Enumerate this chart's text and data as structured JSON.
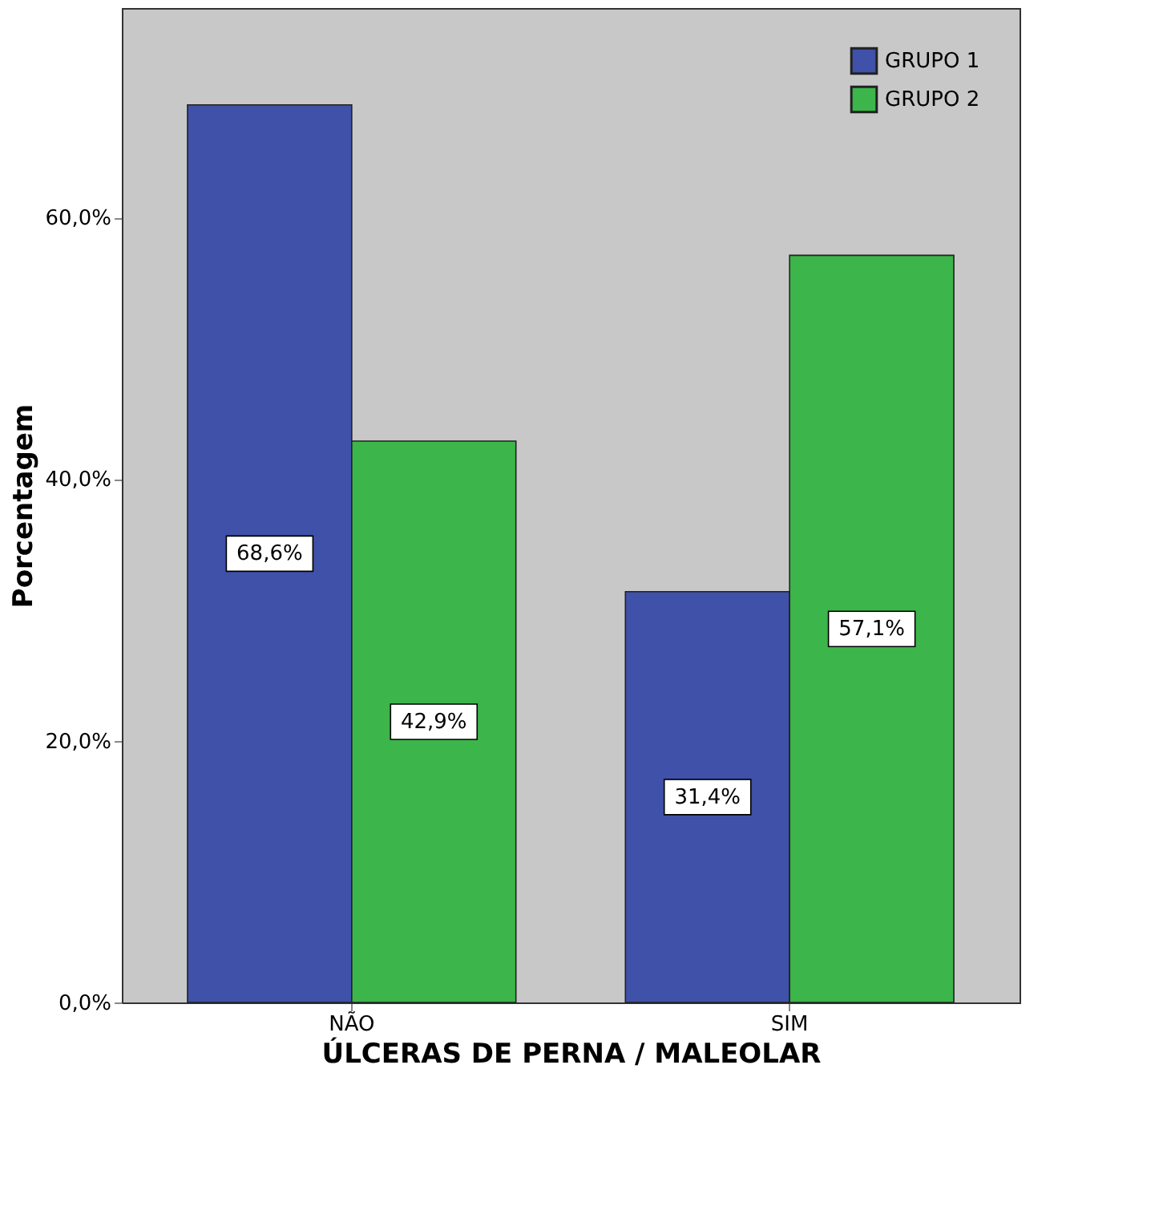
{
  "chart_data": {
    "type": "bar",
    "xlabel": "ÚLCERAS DE PERNA / MALEOLAR",
    "ylabel": "Porcentagem",
    "categories": [
      "NÃO",
      "SIM"
    ],
    "series": [
      {
        "name": "GRUPO 1",
        "color": "#3f51a8",
        "values": [
          68.6,
          31.4
        ]
      },
      {
        "name": "GRUPO 2",
        "color": "#3cb54a",
        "values": [
          42.9,
          57.1
        ]
      }
    ],
    "value_labels": [
      [
        "68,6%",
        "31,4%"
      ],
      [
        "42,9%",
        "57,1%"
      ]
    ],
    "ylim": [
      0,
      76
    ],
    "yticks": [
      {
        "value": 0,
        "label": "0,0%"
      },
      {
        "value": 20,
        "label": "20,0%"
      },
      {
        "value": 40,
        "label": "40,0%"
      },
      {
        "value": 60,
        "label": "60,0%"
      }
    ],
    "grid": false,
    "legend": "top right"
  }
}
